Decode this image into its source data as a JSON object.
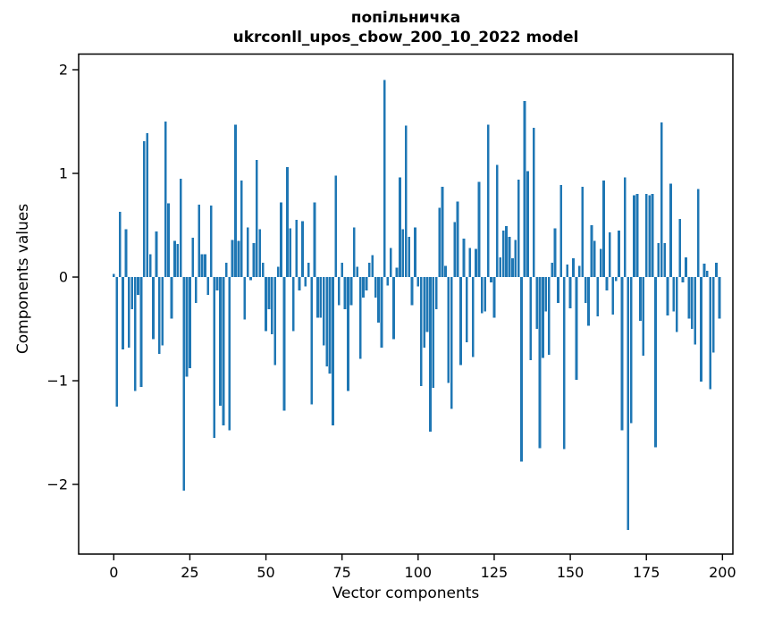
{
  "figure": {
    "background": "#ffffff"
  },
  "chart_data": {
    "type": "bar",
    "title": "попільничка",
    "subtitle": "ukrconll_upos_cbow_200_10_2022 model",
    "xlabel": "Vector components",
    "ylabel": "Components values",
    "legend": null,
    "grid": false,
    "bar_color": "#1f77b4",
    "axis_color": "#000000",
    "tick_label_color": "#000000",
    "xticks": [
      0,
      25,
      50,
      75,
      100,
      125,
      150,
      175,
      200
    ],
    "yticks": [
      2,
      1,
      0,
      -1,
      -2
    ],
    "xlim": [
      -11.54,
      203.42
    ],
    "ylim": [
      -2.672,
      2.151
    ],
    "bar_width_units": 0.8,
    "n_components": 200,
    "values": [
      0.03,
      -1.25,
      0.63,
      -0.7,
      0.46,
      -0.68,
      -0.31,
      -1.1,
      -0.17,
      -1.06,
      1.31,
      1.39,
      0.22,
      -0.6,
      0.44,
      -0.74,
      -0.66,
      1.5,
      0.71,
      -0.4,
      0.35,
      0.32,
      0.95,
      -2.06,
      -0.96,
      -0.88,
      0.38,
      -0.25,
      0.7,
      0.22,
      0.22,
      -0.17,
      0.69,
      -1.55,
      -0.13,
      -1.24,
      -1.43,
      0.14,
      -1.48,
      0.36,
      1.47,
      0.35,
      0.93,
      -0.41,
      0.48,
      -0.03,
      0.33,
      1.13,
      0.46,
      0.14,
      -0.52,
      -0.31,
      -0.55,
      -0.85,
      0.1,
      0.72,
      -1.29,
      1.06,
      0.47,
      -0.52,
      0.55,
      -0.13,
      0.54,
      -0.09,
      0.14,
      -1.23,
      0.72,
      -0.39,
      -0.39,
      -0.66,
      -0.86,
      -0.93,
      -1.43,
      0.98,
      -0.27,
      0.14,
      -0.31,
      -1.1,
      -0.27,
      0.48,
      0.1,
      -0.79,
      -0.2,
      -0.13,
      0.14,
      0.21,
      -0.2,
      -0.44,
      -0.68,
      1.9,
      -0.08,
      0.28,
      -0.6,
      0.09,
      0.96,
      0.46,
      1.46,
      0.39,
      -0.27,
      0.48,
      -0.09,
      -1.05,
      -0.68,
      -0.53,
      -1.49,
      -1.07,
      -0.31,
      0.67,
      0.87,
      0.11,
      -1.02,
      -1.27,
      0.53,
      0.73,
      -0.85,
      0.37,
      -0.63,
      0.28,
      -0.77,
      0.27,
      0.92,
      -0.35,
      -0.33,
      1.47,
      -0.05,
      -0.39,
      1.08,
      0.19,
      0.45,
      0.49,
      0.39,
      0.18,
      0.36,
      0.94,
      -1.78,
      1.7,
      1.02,
      -0.8,
      1.44,
      -0.5,
      -1.65,
      -0.78,
      -0.33,
      -0.75,
      0.14,
      0.47,
      -0.25,
      0.89,
      -1.66,
      0.12,
      -0.3,
      0.18,
      -0.99,
      0.11,
      0.87,
      -0.25,
      -0.47,
      0.5,
      0.35,
      -0.38,
      0.27,
      0.93,
      -0.13,
      0.43,
      -0.36,
      -0.04,
      0.45,
      -1.48,
      0.96,
      -2.44,
      -1.41,
      0.79,
      0.8,
      -0.42,
      -0.76,
      0.8,
      0.79,
      0.8,
      -1.64,
      0.33,
      1.49,
      0.33,
      -0.37,
      0.9,
      -0.33,
      -0.53,
      0.56,
      -0.05,
      0.19,
      -0.4,
      -0.5,
      -0.65,
      0.85,
      -1.01,
      0.13,
      0.06,
      -1.08,
      -0.73,
      0.14,
      -0.4
    ]
  }
}
